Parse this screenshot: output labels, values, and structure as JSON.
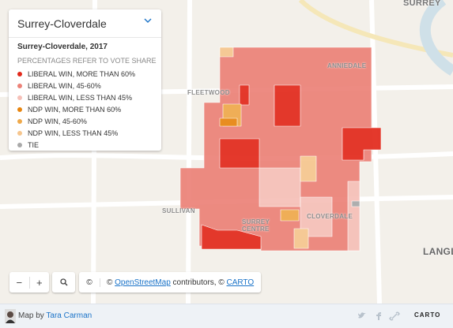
{
  "map": {
    "selector": "Surrey-Cloverdale",
    "title": "Surrey-Cloverdale, 2017",
    "legend_note": "PERCENTAGES REFER TO VOTE SHARE",
    "legend": [
      {
        "label": "LIBERAL WIN, MORE THAN 60%",
        "color": "#e2291b"
      },
      {
        "label": "LIBERAL WIN, 45-60%",
        "color": "#ec8278"
      },
      {
        "label": "LIBERAL WIN, LESS THAN 45%",
        "color": "#f6c0b8"
      },
      {
        "label": "NDP WIN, MORE THAN 60%",
        "color": "#e8850f"
      },
      {
        "label": "NDP WIN, 45-60%",
        "color": "#efa94b"
      },
      {
        "label": "NDP WIN, LESS THAN 45%",
        "color": "#f6c68e"
      },
      {
        "label": "TIE",
        "color": "#a9a9a9"
      }
    ],
    "place_labels": [
      "SURREY",
      "FLEETWOOD",
      "ANNIEDALE",
      "SULLIVAN",
      "SURREY CENTRE",
      "CLOVERDALE",
      "LANGL"
    ],
    "controls": {
      "zoom_out": "−",
      "zoom_in": "+",
      "attribution_toggle": "©"
    },
    "attribution": {
      "prefix": "©",
      "osm": "OpenStreetMap",
      "middle": "contributors, ©",
      "carto": "CARTO"
    }
  },
  "footer": {
    "credit": "Map by",
    "author": "Tara Carman",
    "brand": "CARTO"
  }
}
